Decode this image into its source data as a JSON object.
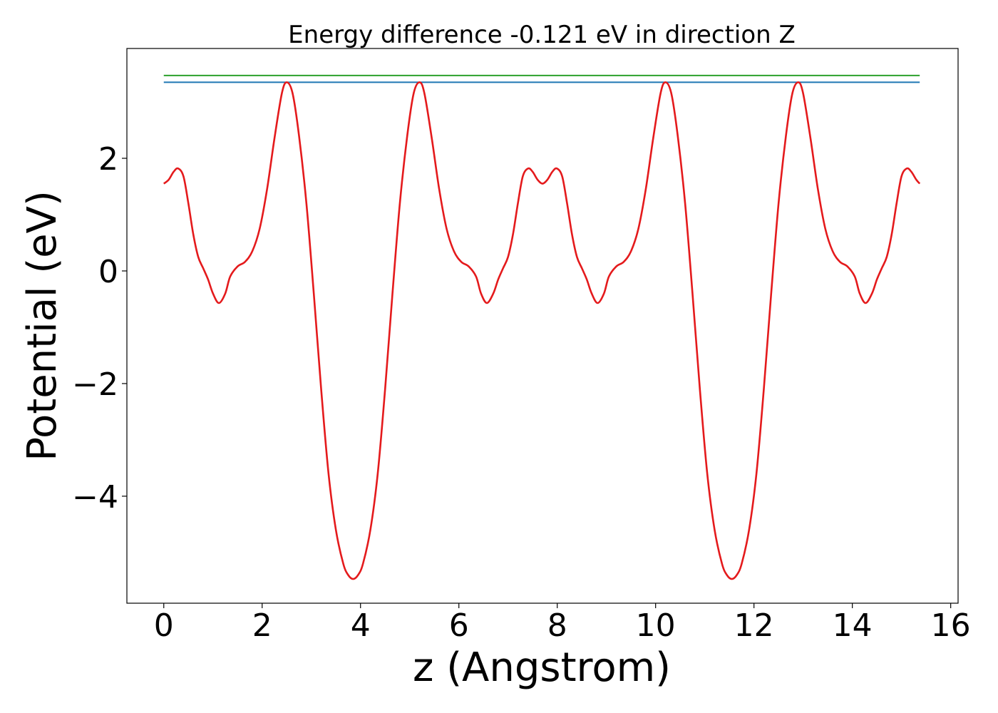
{
  "chart_data": {
    "type": "line",
    "title": "Energy difference -0.121 eV in direction Z",
    "xlabel": "z (Angstrom)",
    "ylabel": "Potential (eV)",
    "xlim": [
      -0.75,
      16.15
    ],
    "ylim": [
      -5.9,
      3.95
    ],
    "xticks": [
      0,
      2,
      4,
      6,
      8,
      10,
      12,
      14,
      16
    ],
    "xtick_labels": [
      "0",
      "2",
      "4",
      "6",
      "8",
      "10",
      "12",
      "14",
      "16"
    ],
    "yticks": [
      2,
      0,
      -2,
      -4
    ],
    "ytick_labels": [
      "2",
      "0",
      "−2",
      "−4"
    ],
    "grid": false,
    "legend": "none",
    "series": [
      {
        "color": "#2ca02c",
        "kind": "hline",
        "y": 3.47,
        "x": [
          0,
          15.37
        ]
      },
      {
        "color": "#1f77b4",
        "kind": "hline",
        "y": 3.35,
        "x": [
          0,
          15.37
        ]
      },
      {
        "color": "#e41a1c",
        "kind": "curve",
        "points": [
          [
            0.0,
            1.55
          ],
          [
            0.1,
            1.62
          ],
          [
            0.2,
            1.76
          ],
          [
            0.29,
            1.82
          ],
          [
            0.4,
            1.68
          ],
          [
            0.5,
            1.2
          ],
          [
            0.6,
            0.65
          ],
          [
            0.7,
            0.25
          ],
          [
            0.8,
            0.05
          ],
          [
            0.9,
            -0.15
          ],
          [
            1.0,
            -0.4
          ],
          [
            1.12,
            -0.57
          ],
          [
            1.25,
            -0.4
          ],
          [
            1.35,
            -0.1
          ],
          [
            1.5,
            0.08
          ],
          [
            1.65,
            0.16
          ],
          [
            1.8,
            0.35
          ],
          [
            1.95,
            0.75
          ],
          [
            2.1,
            1.45
          ],
          [
            2.25,
            2.35
          ],
          [
            2.4,
            3.15
          ],
          [
            2.5,
            3.35
          ],
          [
            2.62,
            3.15
          ],
          [
            2.75,
            2.4
          ],
          [
            2.9,
            1.2
          ],
          [
            3.05,
            -0.4
          ],
          [
            3.2,
            -2.1
          ],
          [
            3.35,
            -3.6
          ],
          [
            3.5,
            -4.6
          ],
          [
            3.65,
            -5.2
          ],
          [
            3.75,
            -5.4
          ],
          [
            3.85,
            -5.47
          ],
          [
            3.95,
            -5.4
          ],
          [
            4.05,
            -5.2
          ],
          [
            4.2,
            -4.6
          ],
          [
            4.35,
            -3.6
          ],
          [
            4.5,
            -2.1
          ],
          [
            4.65,
            -0.4
          ],
          [
            4.8,
            1.2
          ],
          [
            4.95,
            2.4
          ],
          [
            5.08,
            3.15
          ],
          [
            5.2,
            3.35
          ],
          [
            5.3,
            3.15
          ],
          [
            5.45,
            2.35
          ],
          [
            5.6,
            1.45
          ],
          [
            5.75,
            0.75
          ],
          [
            5.9,
            0.35
          ],
          [
            6.05,
            0.16
          ],
          [
            6.2,
            0.08
          ],
          [
            6.35,
            -0.1
          ],
          [
            6.45,
            -0.4
          ],
          [
            6.57,
            -0.57
          ],
          [
            6.7,
            -0.4
          ],
          [
            6.8,
            -0.15
          ],
          [
            6.9,
            0.05
          ],
          [
            7.0,
            0.25
          ],
          [
            7.1,
            0.65
          ],
          [
            7.2,
            1.2
          ],
          [
            7.3,
            1.68
          ],
          [
            7.41,
            1.82
          ],
          [
            7.5,
            1.76
          ],
          [
            7.6,
            1.62
          ],
          [
            7.7,
            1.55
          ],
          [
            7.8,
            1.62
          ],
          [
            7.9,
            1.76
          ],
          [
            7.99,
            1.82
          ],
          [
            8.1,
            1.68
          ],
          [
            8.2,
            1.2
          ],
          [
            8.3,
            0.65
          ],
          [
            8.4,
            0.25
          ],
          [
            8.5,
            0.05
          ],
          [
            8.6,
            -0.15
          ],
          [
            8.7,
            -0.4
          ],
          [
            8.82,
            -0.57
          ],
          [
            8.95,
            -0.4
          ],
          [
            9.05,
            -0.1
          ],
          [
            9.2,
            0.08
          ],
          [
            9.35,
            0.16
          ],
          [
            9.5,
            0.35
          ],
          [
            9.65,
            0.75
          ],
          [
            9.8,
            1.45
          ],
          [
            9.95,
            2.35
          ],
          [
            10.1,
            3.15
          ],
          [
            10.2,
            3.35
          ],
          [
            10.32,
            3.15
          ],
          [
            10.45,
            2.4
          ],
          [
            10.6,
            1.2
          ],
          [
            10.75,
            -0.4
          ],
          [
            10.9,
            -2.1
          ],
          [
            11.05,
            -3.6
          ],
          [
            11.2,
            -4.6
          ],
          [
            11.35,
            -5.2
          ],
          [
            11.45,
            -5.4
          ],
          [
            11.55,
            -5.47
          ],
          [
            11.65,
            -5.4
          ],
          [
            11.75,
            -5.2
          ],
          [
            11.9,
            -4.6
          ],
          [
            12.05,
            -3.6
          ],
          [
            12.2,
            -2.1
          ],
          [
            12.35,
            -0.4
          ],
          [
            12.5,
            1.2
          ],
          [
            12.65,
            2.4
          ],
          [
            12.78,
            3.15
          ],
          [
            12.9,
            3.35
          ],
          [
            13.0,
            3.15
          ],
          [
            13.15,
            2.35
          ],
          [
            13.3,
            1.45
          ],
          [
            13.45,
            0.75
          ],
          [
            13.6,
            0.35
          ],
          [
            13.75,
            0.16
          ],
          [
            13.9,
            0.08
          ],
          [
            14.05,
            -0.1
          ],
          [
            14.15,
            -0.4
          ],
          [
            14.27,
            -0.57
          ],
          [
            14.4,
            -0.4
          ],
          [
            14.5,
            -0.15
          ],
          [
            14.6,
            0.05
          ],
          [
            14.7,
            0.25
          ],
          [
            14.8,
            0.65
          ],
          [
            14.9,
            1.2
          ],
          [
            15.0,
            1.68
          ],
          [
            15.11,
            1.82
          ],
          [
            15.2,
            1.76
          ],
          [
            15.3,
            1.62
          ],
          [
            15.37,
            1.55
          ]
        ]
      }
    ]
  }
}
